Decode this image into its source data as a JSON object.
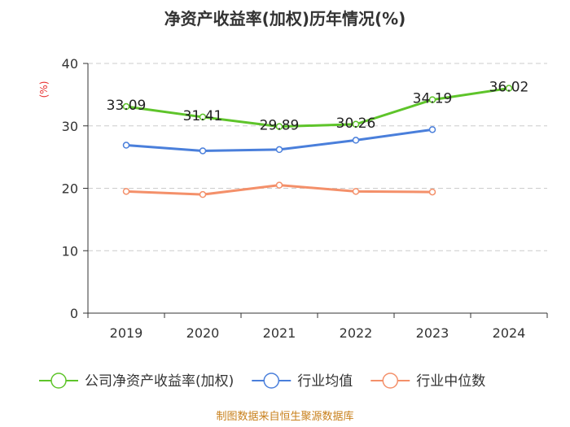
{
  "chart_data": {
    "type": "line",
    "title": "净资产收益率(加权)历年情况(%)",
    "ylabel": "(%)",
    "xlabel": "",
    "categories": [
      "2019",
      "2020",
      "2021",
      "2022",
      "2023",
      "2024"
    ],
    "ylim": [
      0,
      40
    ],
    "yticks": [
      0,
      10,
      20,
      30,
      40
    ],
    "grid": true,
    "legend_position": "bottom",
    "series": [
      {
        "name": "公司净资产收益率(加权)",
        "color": "#5ec42a",
        "values": [
          33.09,
          31.41,
          29.89,
          30.26,
          34.19,
          36.02
        ],
        "labels": [
          "33.09",
          "31.41",
          "29.89",
          "30.26",
          "34.19",
          "36.02"
        ]
      },
      {
        "name": "行业均值",
        "color": "#4a7fdb",
        "values": [
          26.9,
          26.0,
          26.2,
          27.7,
          29.4,
          null
        ],
        "labels": []
      },
      {
        "name": "行业中位数",
        "color": "#f4906a",
        "values": [
          19.5,
          19.0,
          20.5,
          19.5,
          19.4,
          null
        ],
        "labels": []
      }
    ],
    "source": "制图数据来自恒生聚源数据库"
  }
}
